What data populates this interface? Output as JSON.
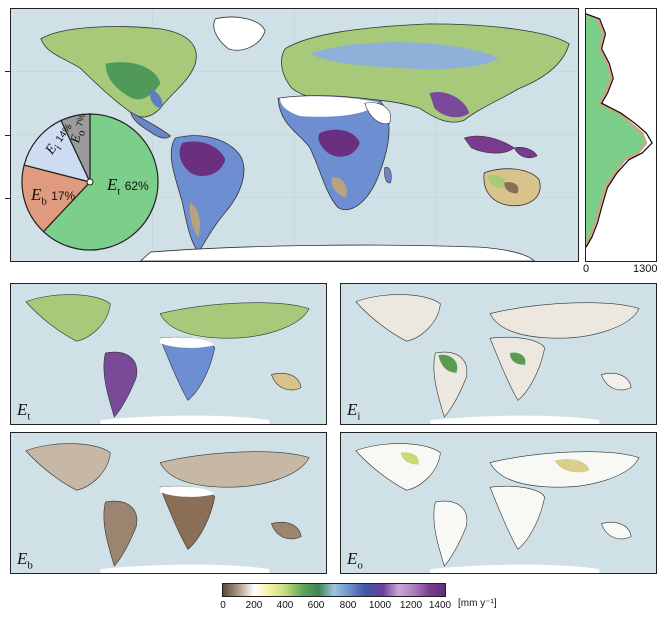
{
  "main_panel": {
    "pie": {
      "slices": [
        {
          "symbol": "E",
          "subscript": "t",
          "percent": 62,
          "label": "62%",
          "color": "#7ccf8a"
        },
        {
          "symbol": "E",
          "subscript": "b",
          "percent": 17,
          "label": "17%",
          "color": "#e09a7e"
        },
        {
          "symbol": "E",
          "subscript": "i",
          "percent": 14,
          "label": "14%",
          "color": "#cddcf0"
        },
        {
          "symbol": "E",
          "subscript": "o",
          "percent": 7,
          "label": "7%",
          "color": "#9b9b9b"
        }
      ]
    }
  },
  "side_profile": {
    "x_min_label": "0",
    "x_max_label": "1300"
  },
  "sub_panels": [
    {
      "symbol": "E",
      "subscript": "t"
    },
    {
      "symbol": "E",
      "subscript": "i"
    },
    {
      "symbol": "E",
      "subscript": "b"
    },
    {
      "symbol": "E",
      "subscript": "o"
    }
  ],
  "colorbar": {
    "ticks": [
      "0",
      "200",
      "400",
      "600",
      "800",
      "1000",
      "1200",
      "1400"
    ],
    "unit": "[mm y⁻¹]"
  }
}
